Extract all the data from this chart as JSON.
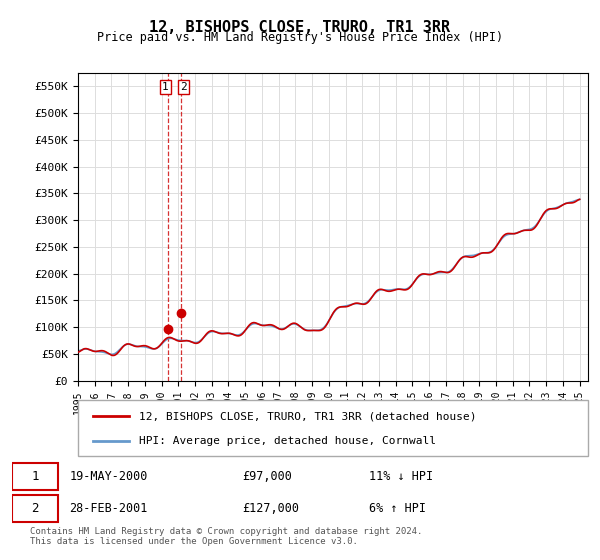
{
  "title": "12, BISHOPS CLOSE, TRURO, TR1 3RR",
  "subtitle": "Price paid vs. HM Land Registry's House Price Index (HPI)",
  "ylabel_ticks": [
    "£0",
    "£50K",
    "£100K",
    "£150K",
    "£200K",
    "£250K",
    "£300K",
    "£350K",
    "£400K",
    "£450K",
    "£500K",
    "£550K"
  ],
  "ytick_values": [
    0,
    50000,
    100000,
    150000,
    200000,
    250000,
    300000,
    350000,
    400000,
    450000,
    500000,
    550000
  ],
  "ylim": [
    0,
    575000
  ],
  "xlim_start": 1995.0,
  "xlim_end": 2025.5,
  "sale1_x": 2000.38,
  "sale1_y": 97000,
  "sale2_x": 2001.16,
  "sale2_y": 127000,
  "sale1_label": "1",
  "sale2_label": "2",
  "vline_color": "#cc0000",
  "vline_style": "dashed",
  "marker_color": "#cc0000",
  "hpi_color": "#6699cc",
  "price_color": "#cc0000",
  "legend_label_price": "12, BISHOPS CLOSE, TRURO, TR1 3RR (detached house)",
  "legend_label_hpi": "HPI: Average price, detached house, Cornwall",
  "table_row1": [
    "1",
    "19-MAY-2000",
    "£97,000",
    "11% ↓ HPI"
  ],
  "table_row2": [
    "2",
    "28-FEB-2001",
    "£127,000",
    "6% ↑ HPI"
  ],
  "footer": "Contains HM Land Registry data © Crown copyright and database right 2024.\nThis data is licensed under the Open Government Licence v3.0.",
  "background_color": "#ffffff",
  "grid_color": "#dddddd"
}
